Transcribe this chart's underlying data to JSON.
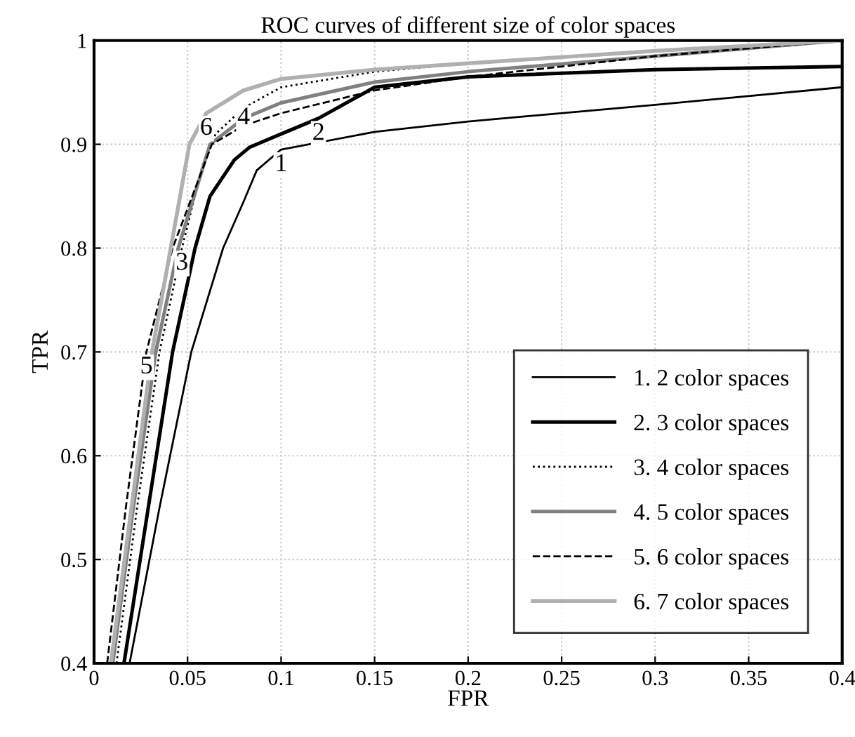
{
  "chart_data": {
    "type": "line",
    "title": "ROC curves of different size of color spaces",
    "xlabel": "FPR",
    "ylabel": "TPR",
    "xlim": [
      0,
      0.4
    ],
    "ylim": [
      0.4,
      1
    ],
    "xticks": [
      0,
      0.05,
      0.1,
      0.15,
      0.2,
      0.25,
      0.3,
      0.35,
      0.4
    ],
    "yticks": [
      0.4,
      0.5,
      0.6,
      0.7,
      0.8,
      0.9,
      1
    ],
    "grid": true,
    "legend": "bottom right",
    "marker": "none",
    "series": [
      {
        "name": "1. 2 color spaces",
        "color": "#000000",
        "line_style": "solid",
        "x": [
          0.019,
          0.035,
          0.052,
          0.069,
          0.08,
          0.087,
          0.1,
          0.15,
          0.2,
          0.3,
          0.4
        ],
        "values": [
          0.4,
          0.55,
          0.7,
          0.8,
          0.845,
          0.875,
          0.895,
          0.912,
          0.922,
          0.938,
          0.955
        ]
      },
      {
        "name": "2. 3 color spaces",
        "color": "#000000",
        "line_style": "solid",
        "x": [
          0.016,
          0.029,
          0.042,
          0.054,
          0.062,
          0.075,
          0.083,
          0.1,
          0.12,
          0.15,
          0.2,
          0.3,
          0.4
        ],
        "values": [
          0.4,
          0.55,
          0.7,
          0.8,
          0.85,
          0.885,
          0.897,
          0.91,
          0.925,
          0.955,
          0.965,
          0.972,
          0.975
        ]
      },
      {
        "name": "3. 4 color spaces",
        "color": "#000000",
        "line_style": "dotted",
        "x": [
          0.012,
          0.023,
          0.035,
          0.047,
          0.058,
          0.065,
          0.08,
          0.1,
          0.15,
          0.2,
          0.3,
          0.4
        ],
        "values": [
          0.4,
          0.55,
          0.7,
          0.8,
          0.88,
          0.91,
          0.935,
          0.955,
          0.97,
          0.978,
          0.99,
          1.0
        ]
      },
      {
        "name": "4. 5 color spaces",
        "color": "#808080",
        "line_style": "solid",
        "x": [
          0.01,
          0.021,
          0.033,
          0.045,
          0.062,
          0.08,
          0.1,
          0.15,
          0.2,
          0.3,
          0.4
        ],
        "values": [
          0.4,
          0.55,
          0.7,
          0.8,
          0.9,
          0.925,
          0.94,
          0.96,
          0.97,
          0.985,
          1.0
        ]
      },
      {
        "name": "5. 6 color spaces",
        "color": "#000000",
        "line_style": "dashed",
        "x": [
          0.007,
          0.017,
          0.028,
          0.042,
          0.063,
          0.08,
          0.1,
          0.15,
          0.2,
          0.3,
          0.4
        ],
        "values": [
          0.4,
          0.55,
          0.7,
          0.8,
          0.9,
          0.918,
          0.93,
          0.952,
          0.965,
          0.985,
          1.0
        ]
      },
      {
        "name": "6. 7 color spaces",
        "color": "#b0b0b0",
        "line_style": "solid",
        "x": [
          0.009,
          0.02,
          0.031,
          0.041,
          0.051,
          0.06,
          0.08,
          0.1,
          0.15,
          0.2,
          0.3,
          0.4
        ],
        "values": [
          0.4,
          0.55,
          0.7,
          0.8,
          0.9,
          0.93,
          0.952,
          0.963,
          0.972,
          0.978,
          0.99,
          1.0
        ]
      }
    ],
    "annotations": [
      {
        "text": "1",
        "x": 0.1,
        "y": 0.895
      },
      {
        "text": "2",
        "x": 0.12,
        "y": 0.925
      },
      {
        "text": "3",
        "x": 0.047,
        "y": 0.8
      },
      {
        "text": "4",
        "x": 0.08,
        "y": 0.94
      },
      {
        "text": "5",
        "x": 0.028,
        "y": 0.7
      },
      {
        "text": "6",
        "x": 0.06,
        "y": 0.93
      }
    ]
  }
}
